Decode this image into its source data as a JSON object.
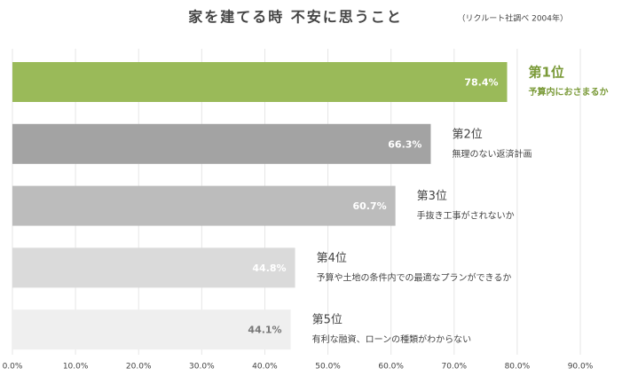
{
  "chart_data": {
    "type": "hbar",
    "title": "家を建てる時 不安に思うこと",
    "subtitle": "（リクルート社調べ 2004年）",
    "ranks": [
      "第1位",
      "第2位",
      "第3位",
      "第4位",
      "第5位"
    ],
    "categories": [
      "予算内におさまるか",
      "無理のない返済計画",
      "手抜き工事がされないか",
      "予算や土地の条件内での最適なプランができるか",
      "有利な融資、ローンの種類がわからない"
    ],
    "values": [
      78.4,
      66.3,
      60.7,
      44.8,
      44.1
    ],
    "value_labels": [
      "78.4%",
      "66.3%",
      "60.7%",
      "44.8%",
      "44.1%"
    ],
    "colors": [
      "#9aba59",
      "#a3a3a3",
      "#bcbcbc",
      "#dadada",
      "#efefef"
    ],
    "label_colors": [
      "#ffffff",
      "#ffffff",
      "#ffffff",
      "#ffffff",
      "#777777"
    ],
    "highlight_color": "#7a9a38",
    "xlim": [
      0,
      90
    ],
    "xticks": [
      {
        "value": 0,
        "label": "0.0%"
      },
      {
        "value": 10,
        "label": "10.0%"
      },
      {
        "value": 20,
        "label": "20.0%"
      },
      {
        "value": 30,
        "label": "30.0%"
      },
      {
        "value": 40,
        "label": "40.0%"
      },
      {
        "value": 50,
        "label": "50.0%"
      },
      {
        "value": 60,
        "label": "60.0%"
      },
      {
        "value": 70,
        "label": "70.0%"
      },
      {
        "value": 80,
        "label": "80.0%"
      },
      {
        "value": 90,
        "label": "90.0%"
      }
    ],
    "grid": true
  }
}
